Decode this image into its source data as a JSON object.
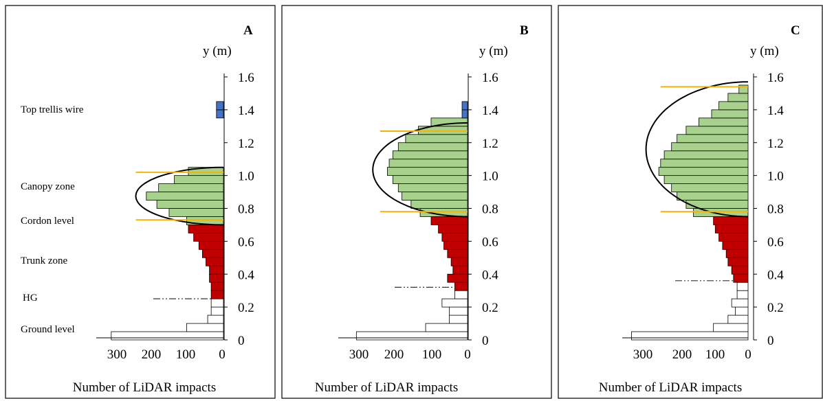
{
  "colors": {
    "trellis": "#4472c4",
    "canopy": "#a9d18e",
    "trunk": "#c00000",
    "ground": "#ffffff",
    "limit": "#f5b400"
  },
  "zone_labels": [
    "Top trellis wire",
    "Canopy zone",
    "Cordon level",
    "Trunk zone",
    "HG",
    "Ground level"
  ],
  "chart_data": [
    {
      "type": "bar",
      "panel": "A",
      "orientation": "horizontal",
      "ylabel": "y (m)",
      "xlabel": "Number of LiDAR impacts",
      "ylim": [
        0,
        1.6
      ],
      "xlim": [
        330,
        0
      ],
      "yticks": [
        "0",
        "0.2",
        "0.4",
        "0.6",
        "0.8",
        "1.0",
        "1.2",
        "1.4",
        "1.6"
      ],
      "xticks": [
        "300",
        "200",
        "100",
        "0"
      ],
      "bin_height": 0.05,
      "series": [
        {
          "zone": "ground",
          "bars": [
            [
              0.0,
              320
            ],
            [
              0.05,
              105
            ],
            [
              0.1,
              45
            ],
            [
              0.15,
              35
            ],
            [
              0.2,
              35
            ]
          ]
        },
        {
          "zone": "trunk",
          "bars": [
            [
              0.25,
              35
            ],
            [
              0.3,
              35
            ],
            [
              0.35,
              40
            ],
            [
              0.4,
              40
            ],
            [
              0.45,
              50
            ],
            [
              0.5,
              60
            ],
            [
              0.55,
              70
            ],
            [
              0.6,
              85
            ],
            [
              0.65,
              100
            ]
          ]
        },
        {
          "zone": "canopy",
          "bars": [
            [
              0.7,
              105
            ],
            [
              0.75,
              155
            ],
            [
              0.8,
              190
            ],
            [
              0.85,
              220
            ],
            [
              0.9,
              185
            ],
            [
              0.95,
              140
            ],
            [
              1.0,
              100
            ]
          ]
        },
        {
          "zone": "trellis",
          "bars": [
            [
              1.35,
              20
            ],
            [
              1.4,
              20
            ]
          ]
        }
      ],
      "fit_curve": {
        "y_min": 0.7,
        "y_max": 1.05,
        "x_peak": 250
      },
      "limit_lines": [
        {
          "y": 0.73,
          "x_from": 250
        },
        {
          "y": 1.02,
          "x_from": 250
        }
      ],
      "hg_line": {
        "y": 0.25,
        "x_from": 200
      }
    },
    {
      "type": "bar",
      "panel": "B",
      "orientation": "horizontal",
      "ylabel": "y (m)",
      "xlabel": "Number of LiDAR impacts",
      "ylim": [
        0,
        1.6
      ],
      "xlim": [
        330,
        0
      ],
      "yticks": [
        "0",
        "0.2",
        "0.4",
        "0.6",
        "0.8",
        "1.0",
        "1.2",
        "1.4",
        "1.6"
      ],
      "xticks": [
        "300",
        "200",
        "100",
        "0"
      ],
      "bin_height": 0.05,
      "series": [
        {
          "zone": "ground",
          "bars": [
            [
              0.0,
              305
            ],
            [
              0.05,
              115
            ],
            [
              0.1,
              50
            ],
            [
              0.15,
              50
            ],
            [
              0.2,
              70
            ],
            [
              0.25,
              35
            ]
          ]
        },
        {
          "zone": "trunk",
          "bars": [
            [
              0.3,
              35
            ],
            [
              0.35,
              55
            ],
            [
              0.4,
              40
            ],
            [
              0.45,
              45
            ],
            [
              0.5,
              55
            ],
            [
              0.55,
              65
            ],
            [
              0.6,
              70
            ],
            [
              0.65,
              80
            ],
            [
              0.7,
              100
            ]
          ]
        },
        {
          "zone": "canopy",
          "bars": [
            [
              0.75,
              130
            ],
            [
              0.8,
              155
            ],
            [
              0.85,
              180
            ],
            [
              0.9,
              190
            ],
            [
              0.95,
              205
            ],
            [
              1.0,
              220
            ],
            [
              1.05,
              215
            ],
            [
              1.1,
              205
            ],
            [
              1.15,
              190
            ],
            [
              1.2,
              170
            ],
            [
              1.25,
              135
            ],
            [
              1.3,
              100
            ]
          ]
        },
        {
          "zone": "trellis",
          "bars": [
            [
              1.35,
              15
            ],
            [
              1.4,
              15
            ]
          ]
        }
      ],
      "fit_curve": {
        "y_min": 0.75,
        "y_max": 1.32,
        "x_peak": 260
      },
      "limit_lines": [
        {
          "y": 0.78,
          "x_from": 240
        },
        {
          "y": 1.27,
          "x_from": 240
        }
      ],
      "hg_line": {
        "y": 0.32,
        "x_from": 200
      }
    },
    {
      "type": "bar",
      "panel": "C",
      "orientation": "horizontal",
      "ylabel": "y (m)",
      "xlabel": "Number of LiDAR impacts",
      "ylim": [
        0,
        1.6
      ],
      "xlim": [
        330,
        0
      ],
      "yticks": [
        "0",
        "0.2",
        "0.4",
        "0.6",
        "0.8",
        "1.0",
        "1.2",
        "1.4",
        "1.6"
      ],
      "xticks": [
        "300",
        "200",
        "100",
        "0"
      ],
      "bin_height": 0.05,
      "series": [
        {
          "zone": "ground",
          "bars": [
            [
              0.0,
              320
            ],
            [
              0.05,
              95
            ],
            [
              0.1,
              55
            ],
            [
              0.15,
              35
            ],
            [
              0.2,
              45
            ],
            [
              0.25,
              30
            ],
            [
              0.3,
              30
            ]
          ]
        },
        {
          "zone": "trunk",
          "bars": [
            [
              0.35,
              40
            ],
            [
              0.4,
              45
            ],
            [
              0.45,
              55
            ],
            [
              0.5,
              60
            ],
            [
              0.55,
              70
            ],
            [
              0.6,
              80
            ],
            [
              0.65,
              90
            ],
            [
              0.7,
              95
            ]
          ]
        },
        {
          "zone": "canopy",
          "bars": [
            [
              0.75,
              150
            ],
            [
              0.8,
              170
            ],
            [
              0.85,
              195
            ],
            [
              0.9,
              210
            ],
            [
              0.95,
              230
            ],
            [
              1.0,
              245
            ],
            [
              1.05,
              240
            ],
            [
              1.1,
              230
            ],
            [
              1.15,
              210
            ],
            [
              1.2,
              195
            ],
            [
              1.25,
              170
            ],
            [
              1.3,
              135
            ],
            [
              1.35,
              100
            ],
            [
              1.4,
              80
            ],
            [
              1.45,
              55
            ],
            [
              1.5,
              25
            ]
          ]
        }
      ],
      "fit_curve": {
        "y_min": 0.75,
        "y_max": 1.57,
        "x_peak": 280
      },
      "limit_lines": [
        {
          "y": 0.78,
          "x_from": 240
        },
        {
          "y": 1.54,
          "x_from": 240
        }
      ],
      "hg_line": {
        "y": 0.36,
        "x_from": 200
      }
    }
  ]
}
